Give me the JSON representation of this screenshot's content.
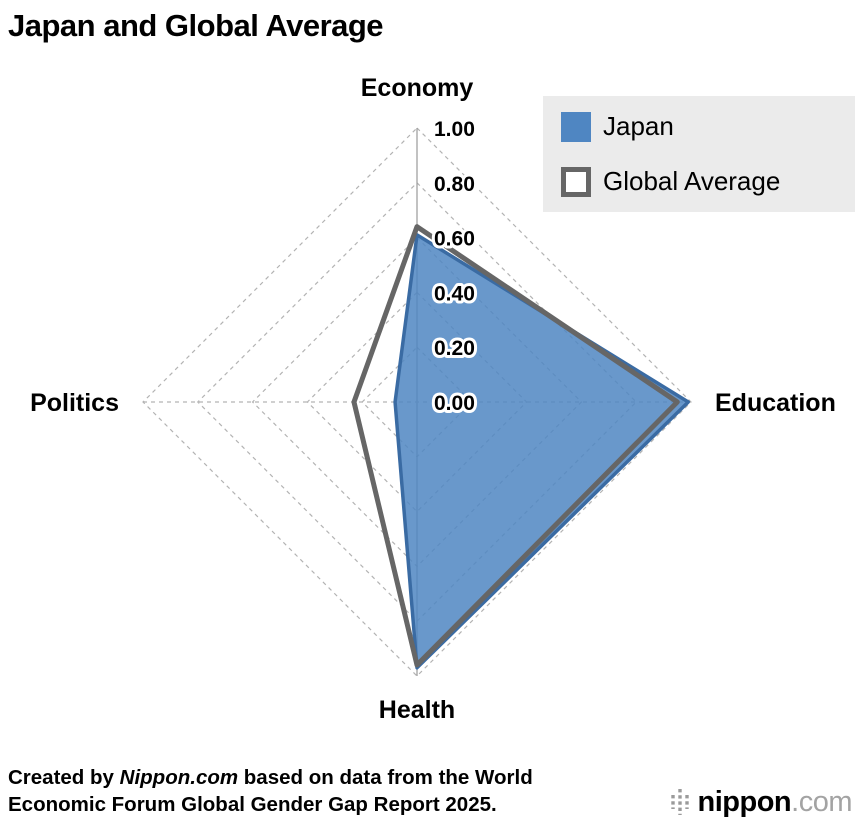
{
  "title": "Japan and Global Average",
  "chart_data": {
    "type": "radar",
    "categories": [
      "Economy",
      "Education",
      "Health",
      "Politics"
    ],
    "grid_levels": [
      0.2,
      0.4,
      0.6,
      0.8,
      1.0
    ],
    "ticks": [
      {
        "label": "1.00",
        "value": 1.0
      },
      {
        "label": "0.80",
        "value": 0.8
      },
      {
        "label": "0.60",
        "value": 0.6
      },
      {
        "label": "0.40",
        "value": 0.4
      },
      {
        "label": "0.20",
        "value": 0.2
      },
      {
        "label": "0.00",
        "value": 0.0
      }
    ],
    "rmax": 1.0,
    "series": [
      {
        "name": "Japan",
        "values": [
          0.61,
          0.99,
          0.97,
          0.08
        ],
        "fill": "#4f86c2",
        "fill_opacity": 0.85,
        "stroke": "#3a6ba3",
        "stroke_width": 3.5
      },
      {
        "name": "Global Average",
        "values": [
          0.64,
          0.95,
          0.96,
          0.23
        ],
        "fill": "none",
        "fill_opacity": 1,
        "stroke": "#666666",
        "stroke_width": 5
      }
    ],
    "grid_color": "#b3b3b3",
    "axis_color": "#9a9a9a",
    "legend_position": "top-right"
  },
  "caption": {
    "line1_prefix": "Created by ",
    "line1_brand": "Nippon.com",
    "line1_suffix": " based on data from the World",
    "line2": "Economic Forum Global Gender Gap Report 2025."
  },
  "logo": {
    "brand": "nippon",
    "tld": ".com"
  }
}
